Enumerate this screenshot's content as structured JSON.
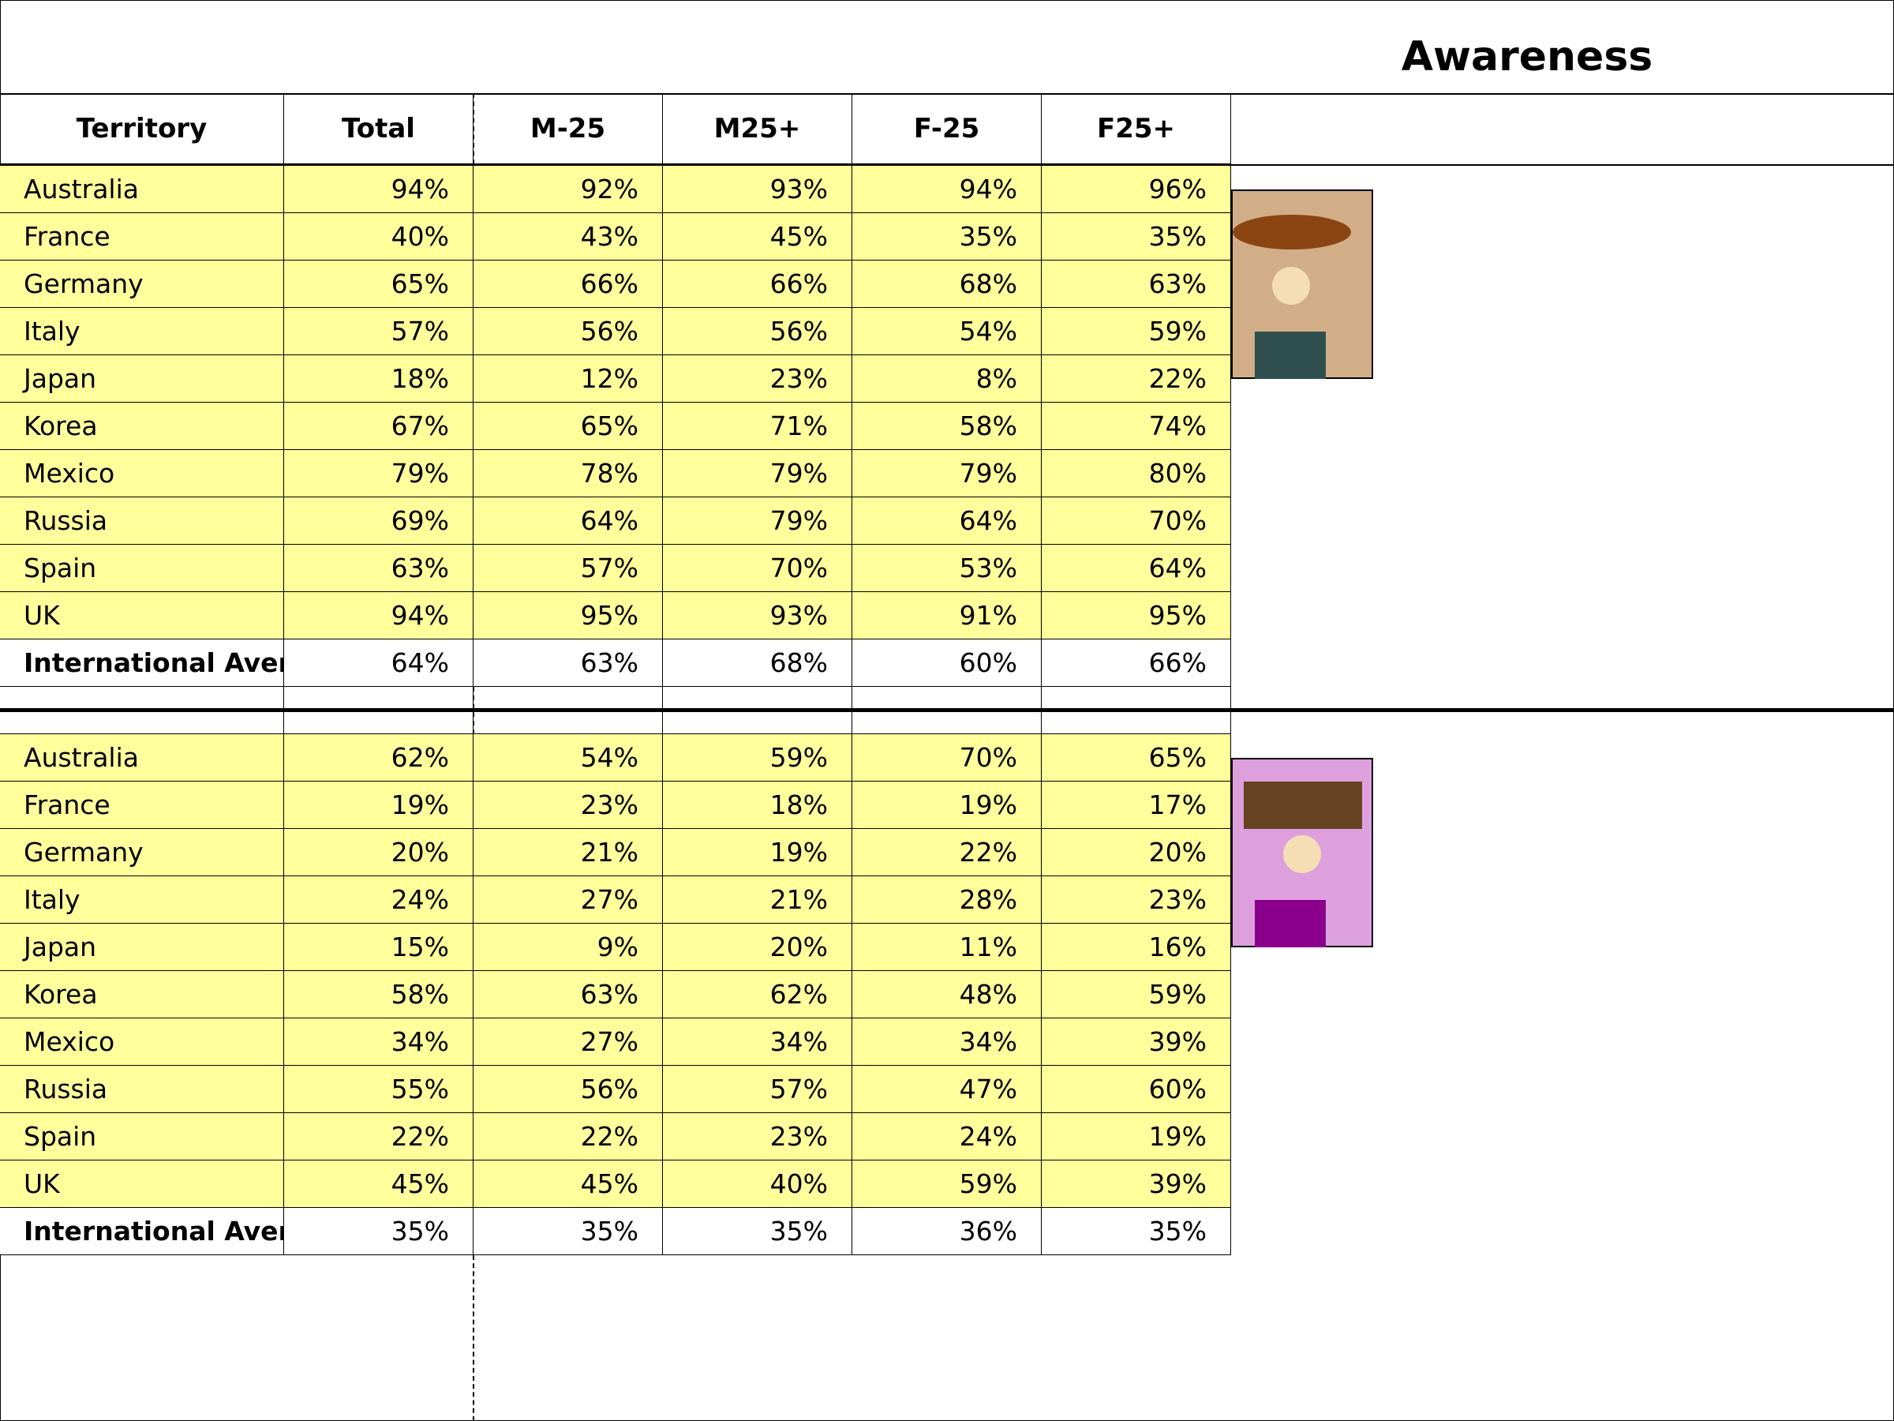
{
  "title": "Awareness",
  "headers": [
    "Territory",
    "Total",
    "M-25",
    "M25+",
    "F-25",
    "F25+"
  ],
  "sections": [
    {
      "rows": [
        {
          "territory": "Australia",
          "values": [
            "94%",
            "92%",
            "93%",
            "94%",
            "96%"
          ]
        },
        {
          "territory": "France",
          "values": [
            "40%",
            "43%",
            "45%",
            "35%",
            "35%"
          ]
        },
        {
          "territory": "Germany",
          "values": [
            "65%",
            "66%",
            "66%",
            "68%",
            "63%"
          ]
        },
        {
          "territory": "Italy",
          "values": [
            "57%",
            "56%",
            "56%",
            "54%",
            "59%"
          ]
        },
        {
          "territory": "Japan",
          "values": [
            "18%",
            "12%",
            "23%",
            "8%",
            "22%"
          ]
        },
        {
          "territory": "Korea",
          "values": [
            "67%",
            "65%",
            "71%",
            "58%",
            "74%"
          ]
        },
        {
          "territory": "Mexico",
          "values": [
            "79%",
            "78%",
            "79%",
            "79%",
            "80%"
          ]
        },
        {
          "territory": "Russia",
          "values": [
            "69%",
            "64%",
            "79%",
            "64%",
            "70%"
          ]
        },
        {
          "territory": "Spain",
          "values": [
            "63%",
            "57%",
            "70%",
            "53%",
            "64%"
          ]
        },
        {
          "territory": "UK",
          "values": [
            "94%",
            "95%",
            "93%",
            "91%",
            "95%"
          ]
        }
      ],
      "average": {
        "territory": "International Average",
        "values": [
          "64%",
          "63%",
          "68%",
          "60%",
          "66%"
        ]
      },
      "picture": {
        "icon": "male-figure-icon",
        "bg_color": "#d2ae88",
        "hair_color": "#8b4513",
        "face_color": "#f5deb3",
        "body_color": "#2f4f4f"
      }
    },
    {
      "rows": [
        {
          "territory": "Australia",
          "values": [
            "62%",
            "54%",
            "59%",
            "70%",
            "65%"
          ]
        },
        {
          "territory": "France",
          "values": [
            "19%",
            "23%",
            "18%",
            "19%",
            "17%"
          ]
        },
        {
          "territory": "Germany",
          "values": [
            "20%",
            "21%",
            "19%",
            "22%",
            "20%"
          ]
        },
        {
          "territory": "Italy",
          "values": [
            "24%",
            "27%",
            "21%",
            "28%",
            "23%"
          ]
        },
        {
          "territory": "Japan",
          "values": [
            "15%",
            "9%",
            "20%",
            "11%",
            "16%"
          ]
        },
        {
          "territory": "Korea",
          "values": [
            "58%",
            "63%",
            "62%",
            "48%",
            "59%"
          ]
        },
        {
          "territory": "Mexico",
          "values": [
            "34%",
            "27%",
            "34%",
            "34%",
            "39%"
          ]
        },
        {
          "territory": "Russia",
          "values": [
            "55%",
            "56%",
            "57%",
            "47%",
            "60%"
          ]
        },
        {
          "territory": "Spain",
          "values": [
            "22%",
            "22%",
            "23%",
            "24%",
            "19%"
          ]
        },
        {
          "territory": "UK",
          "values": [
            "45%",
            "45%",
            "40%",
            "59%",
            "39%"
          ]
        }
      ],
      "average": {
        "territory": "International Average",
        "values": [
          "35%",
          "35%",
          "35%",
          "36%",
          "35%"
        ]
      },
      "picture": {
        "icon": "female-figure-icon",
        "bg_color": "#dda0dd",
        "hair_color": "#654321",
        "face_color": "#f5deb3",
        "body_color": "#8b008b"
      }
    }
  ],
  "colors": {
    "row_fill": "#ffff9c",
    "border": "#000000"
  }
}
